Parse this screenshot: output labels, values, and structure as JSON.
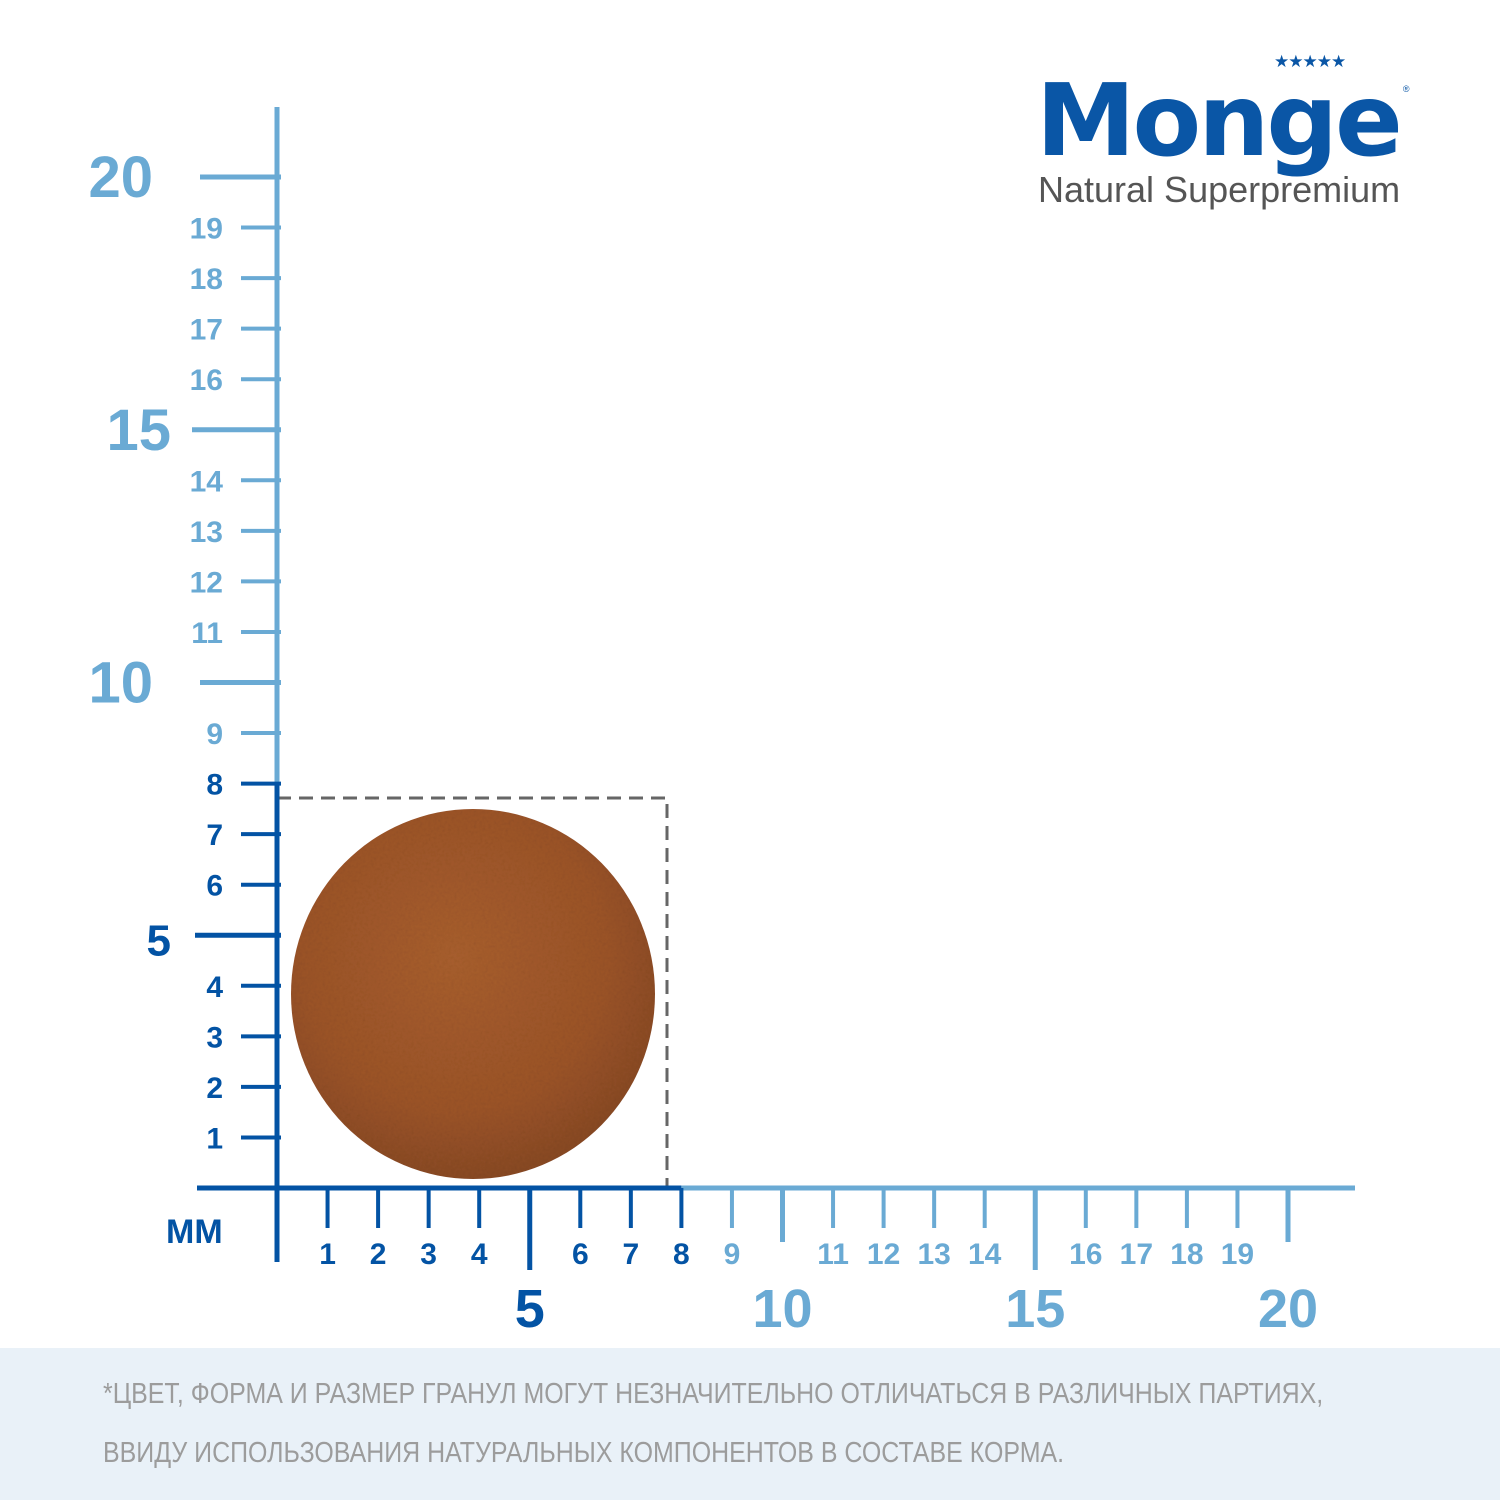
{
  "brand": {
    "name": "Monge",
    "tagline": "Natural Superpremium",
    "stars": "★★★★★",
    "registered": "®",
    "color": "#0a56a6"
  },
  "ruler": {
    "unit": "MM",
    "dark_color": "#0353a4",
    "light_color": "#6aaad4",
    "dark_until_mm": 8,
    "x_labels": [
      1,
      2,
      3,
      4,
      5,
      6,
      7,
      8,
      9,
      10,
      11,
      12,
      13,
      14,
      15,
      16,
      17,
      18,
      19,
      20
    ],
    "y_labels": [
      1,
      2,
      3,
      4,
      5,
      6,
      7,
      8,
      9,
      10,
      11,
      12,
      13,
      14,
      15,
      16,
      17,
      18,
      19,
      20
    ],
    "major_every": 5,
    "kibble_size_mm": 8
  },
  "kibble": {
    "color": "#a4592b"
  },
  "footer": {
    "line1": "*ЦВЕТ, ФОРМА И РАЗМЕР ГРАНУЛ МОГУТ НЕЗНАЧИТЕЛЬНО ОТЛИЧАТЬСЯ В РАЗЛИЧНЫХ ПАРТИЯХ,",
    "line2": "ВВИДУ ИСПОЛЬЗОВАНИЯ НАТУРАЛЬНЫХ КОМПОНЕНТОВ В СОСТАВЕ КОРМА."
  }
}
